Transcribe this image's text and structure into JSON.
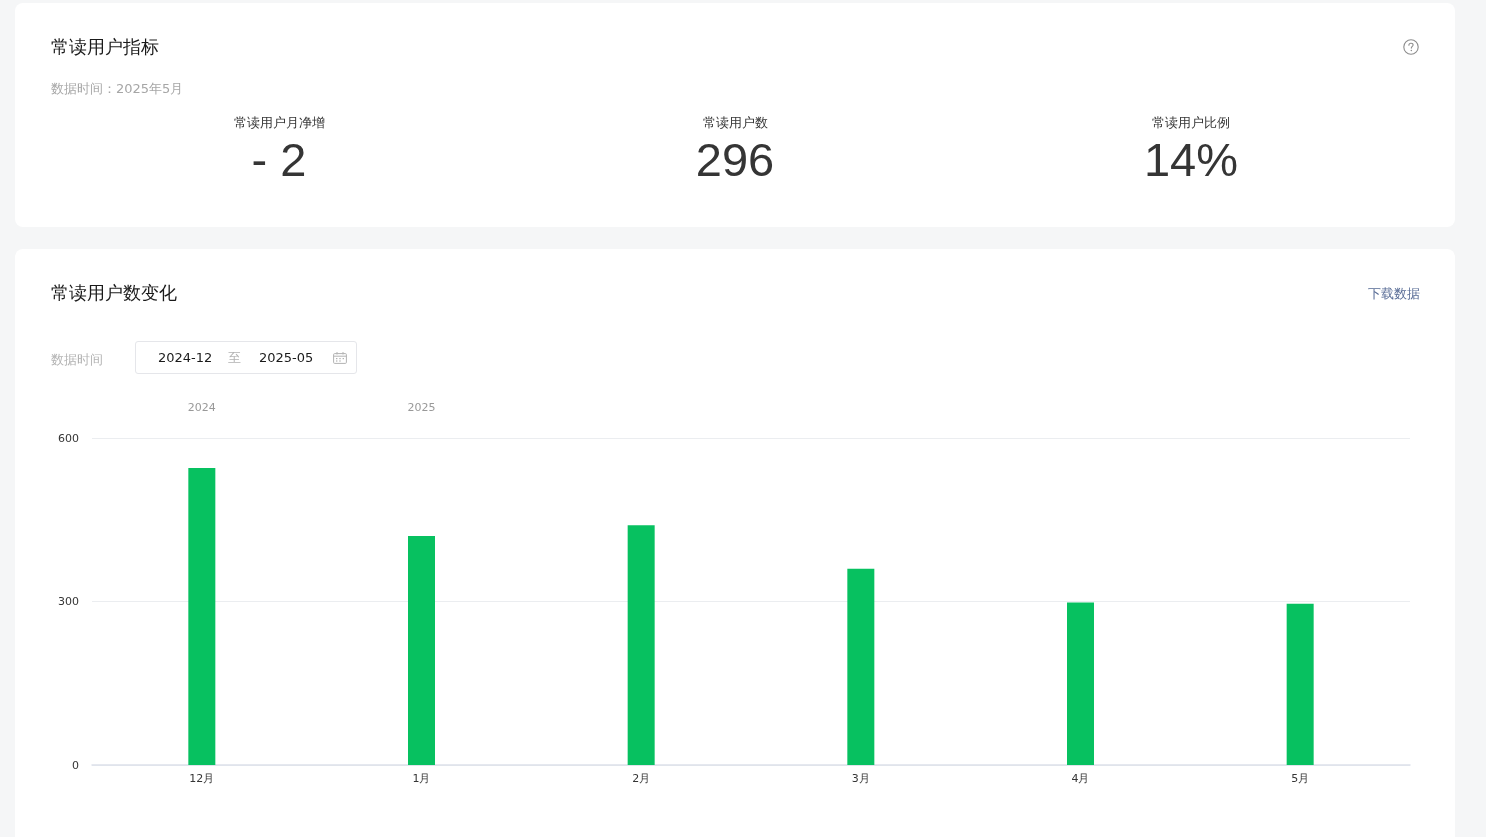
{
  "chart_data": [
    {
      "type": "other",
      "title": "常读用户指标",
      "subtitle": "数据时间：2025年5月",
      "categories": [
        "常读用户月净增",
        "常读用户数",
        "常读用户比例"
      ],
      "values": [
        -2,
        296,
        14
      ],
      "value_labels": [
        "- 2",
        "296",
        "14%"
      ]
    },
    {
      "type": "bar",
      "title": "常读用户数变化",
      "categories": [
        "12月",
        "1月",
        "2月",
        "3月",
        "4月",
        "5月"
      ],
      "values": [
        545,
        420,
        440,
        360,
        298,
        296
      ],
      "color": "#07c160",
      "ylim": [
        0,
        600
      ],
      "yticks": [
        0,
        300,
        600
      ],
      "grid": "y",
      "annotations": [
        "下载数据",
        "数据时间",
        "2024-12",
        "至",
        "2025-05",
        "2024",
        "2025"
      ]
    }
  ]
}
